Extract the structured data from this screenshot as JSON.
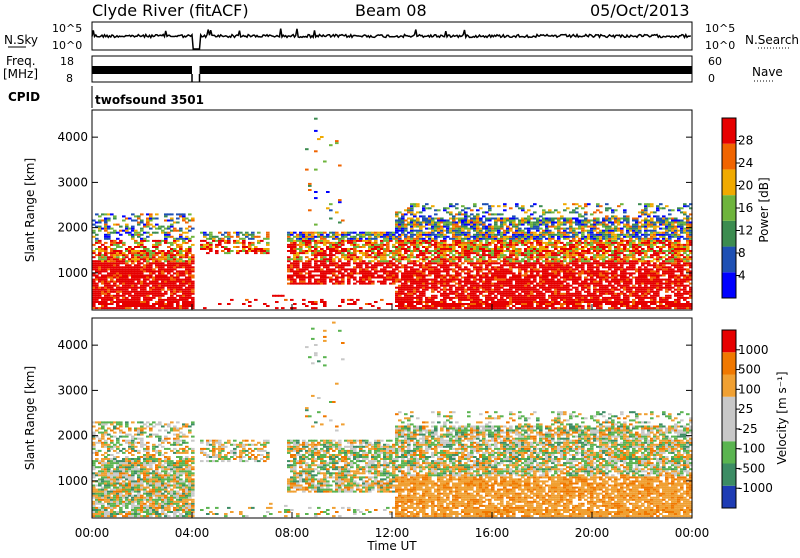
{
  "header": {
    "station": "Clyde River (fitACF)",
    "beam": "Beam 08",
    "date": "05/Oct/2013"
  },
  "summary_panels": {
    "nsky_label": "N.Sky",
    "nsearch_label": "N.Search",
    "nsky_ticks": [
      "10^5",
      "10^0"
    ],
    "nsearch_ticks": [
      "10^5",
      "10^0"
    ],
    "freq_label_line1": "Freq.",
    "freq_label_line2": "[MHz]",
    "freq_ticks": [
      "18",
      "8"
    ],
    "nave_label": "Nave",
    "nave_ticks": [
      "60",
      "0"
    ],
    "cpid_label": "CPID",
    "cpid_value": "twofsound 3501"
  },
  "chart_data": [
    {
      "type": "heatmap",
      "name": "power",
      "ylabel": "Slant Range [km]",
      "xlabel": "",
      "xlim_hours": [
        0,
        24
      ],
      "ylim_km": [
        180,
        4600
      ],
      "y_ticks": [
        "4000",
        "3000",
        "2000",
        "1000"
      ],
      "colorbar_label": "Power [dB]",
      "colorbar_ticks": [
        "28",
        "24",
        "20",
        "16",
        "12",
        "8",
        "4"
      ],
      "colorbar_colors": [
        "#0000ff",
        "#1e50b4",
        "#3c8c50",
        "#6eb43c",
        "#f0aa00",
        "#f06400",
        "#e60000"
      ]
    },
    {
      "type": "heatmap",
      "name": "velocity",
      "ylabel": "Slant Range [km]",
      "xlabel": "Time UT",
      "xlim_hours": [
        0,
        24
      ],
      "ylim_km": [
        180,
        4600
      ],
      "y_ticks": [
        "4000",
        "3000",
        "2000",
        "1000"
      ],
      "x_ticks": [
        "00:00",
        "04:00",
        "08:00",
        "12:00",
        "16:00",
        "20:00",
        "00:00"
      ],
      "colorbar_label": "Velocity [m s⁻¹]",
      "colorbar_ticks": [
        "1000",
        "500",
        "100",
        "25",
        "-25",
        "-100",
        "-500",
        "-1000"
      ],
      "colorbar_colors": [
        "#1e3cb4",
        "#3c8c64",
        "#5ab450",
        "#c8c8c8",
        "#c8c8c8",
        "#f0a032",
        "#f07800",
        "#e60000"
      ]
    }
  ]
}
